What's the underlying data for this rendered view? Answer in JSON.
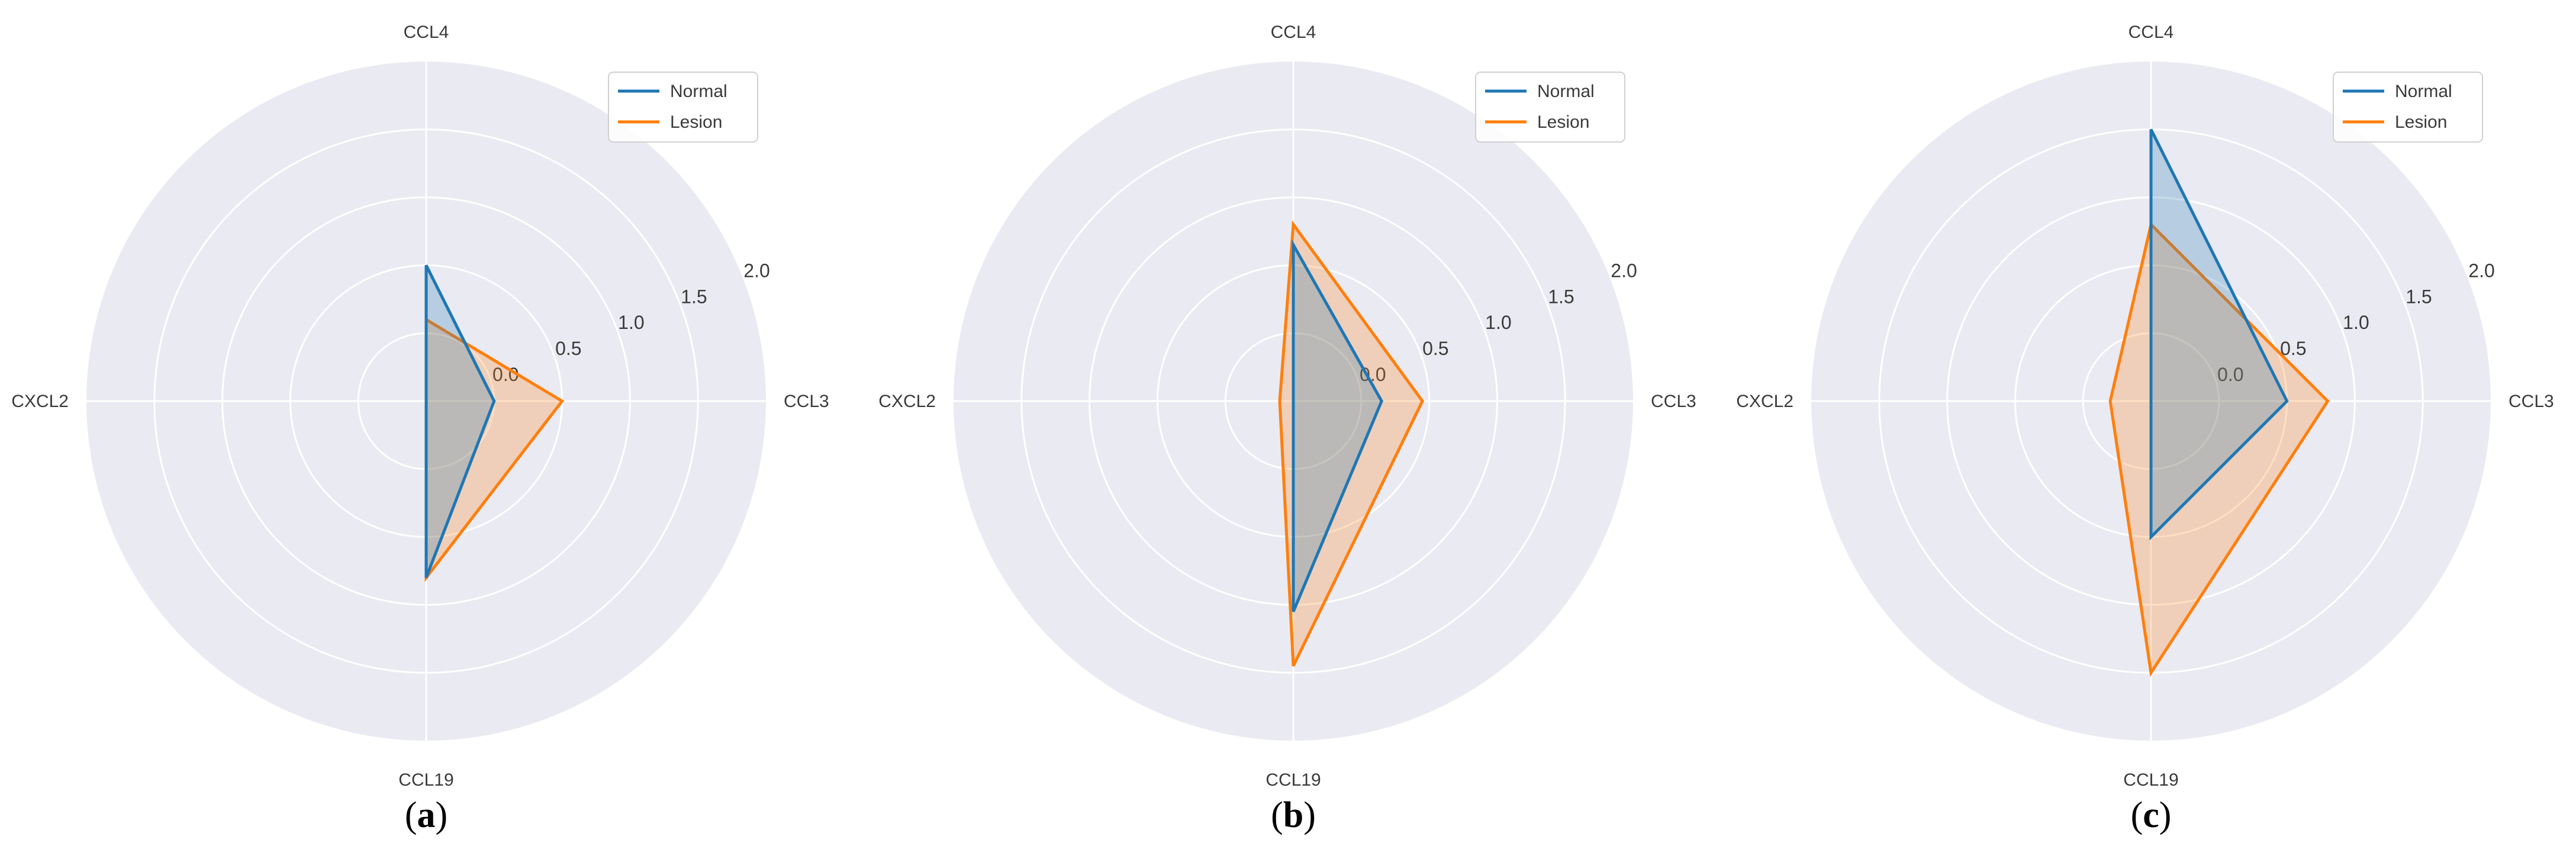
{
  "colors": {
    "panel_bg": "#eaeaf2",
    "grid": "#ffffff",
    "normal": "#1f77b4",
    "lesion": "#ff7f0e"
  },
  "chart_data": [
    {
      "type": "radar",
      "caption": "a",
      "axes": [
        "CCL3",
        "CCL4",
        "CXCL2",
        "CCL19"
      ],
      "rticks": [
        "0.0",
        "0.5",
        "1.0",
        "1.5",
        "2.0"
      ],
      "rlim": [
        -0.5,
        2.0
      ],
      "grid": true,
      "legend": {
        "position": "top-right"
      },
      "series": [
        {
          "name": "Normal",
          "values": [
            0.0,
            0.5,
            -0.5,
            0.8
          ]
        },
        {
          "name": "Lesion",
          "values": [
            0.5,
            0.1,
            -0.5,
            0.8
          ]
        }
      ]
    },
    {
      "type": "radar",
      "caption": "b",
      "axes": [
        "CCL3",
        "CCL4",
        "CXCL2",
        "CCL19"
      ],
      "rticks": [
        "0.0",
        "0.5",
        "1.0",
        "1.5",
        "2.0"
      ],
      "rlim": [
        -0.5,
        2.0
      ],
      "grid": true,
      "legend": {
        "position": "top-right"
      },
      "series": [
        {
          "name": "Normal",
          "values": [
            0.15,
            0.65,
            -0.5,
            1.05
          ]
        },
        {
          "name": "Lesion",
          "values": [
            0.45,
            0.8,
            -0.4,
            1.45
          ]
        }
      ]
    },
    {
      "type": "radar",
      "caption": "c",
      "axes": [
        "CCL3",
        "CCL4",
        "CXCL2",
        "CCL19"
      ],
      "rticks": [
        "0.0",
        "0.5",
        "1.0",
        "1.5",
        "2.0"
      ],
      "rlim": [
        -0.5,
        2.0
      ],
      "grid": true,
      "legend": {
        "position": "top-right"
      },
      "series": [
        {
          "name": "Normal",
          "values": [
            0.5,
            1.5,
            -0.5,
            0.5
          ]
        },
        {
          "name": "Lesion",
          "values": [
            0.8,
            0.8,
            -0.2,
            1.5
          ]
        }
      ]
    }
  ]
}
